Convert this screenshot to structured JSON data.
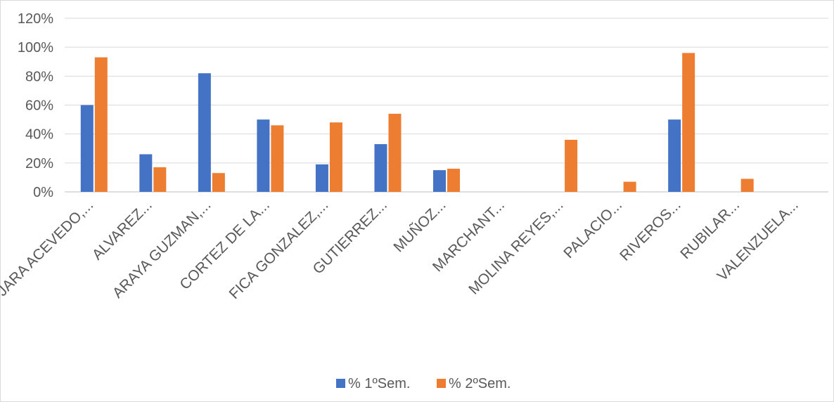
{
  "chart_data": {
    "type": "bar",
    "title": "",
    "xlabel": "",
    "ylabel": "",
    "ylim": [
      0,
      120
    ],
    "y_tick_labels": [
      "0%",
      "20%",
      "40%",
      "60%",
      "80%",
      "100%",
      "120%"
    ],
    "y_ticks": [
      0,
      20,
      40,
      60,
      80,
      100,
      120
    ],
    "grid": true,
    "legend_placement": "bottom",
    "categories": [
      "JARA ACEVEDO,...",
      "ALVAREZ...",
      "ARAYA GUZMAN,...",
      "CORTEZ DE LA...",
      "FICA GONZALEZ,...",
      "GUTIERREZ...",
      "MUÑOZ...",
      "MARCHANT...",
      "MOLINA REYES,...",
      "PALACIO...",
      "RIVEROS...",
      "RUBILAR...",
      "VALENZUELA..."
    ],
    "series": [
      {
        "name": "% 1ºSem.",
        "color": "#4472C4",
        "values": [
          60,
          26,
          82,
          50,
          19,
          33,
          15,
          0,
          0,
          0,
          50,
          0,
          0
        ]
      },
      {
        "name": "% 2ºSem.",
        "color": "#ED7D31",
        "values": [
          93,
          17,
          13,
          46,
          48,
          54,
          16,
          0,
          36,
          7,
          96,
          9,
          0
        ]
      }
    ]
  }
}
